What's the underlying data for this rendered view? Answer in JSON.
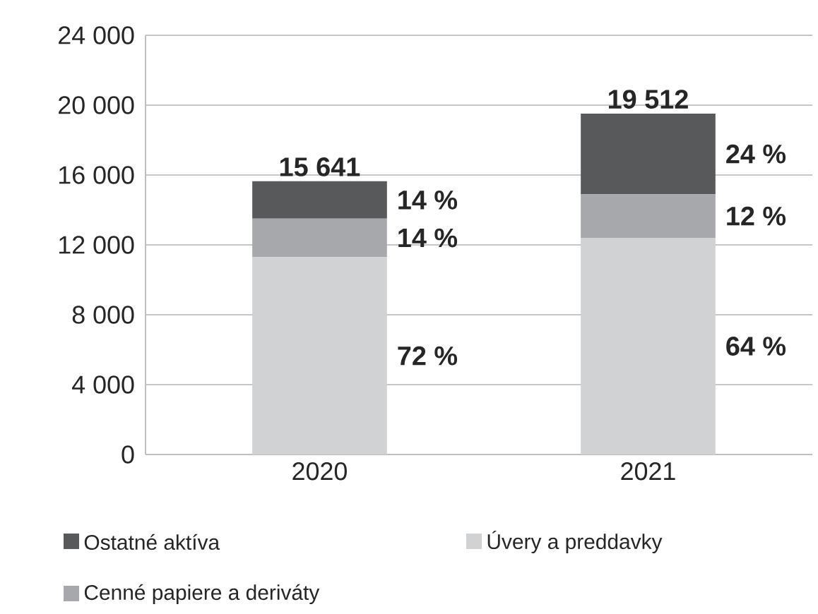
{
  "chart_data": {
    "type": "bar",
    "stacked": true,
    "categories": [
      "2020",
      "2021"
    ],
    "series": [
      {
        "name": "Úvery a preddavky",
        "color": "#d1d2d4",
        "values": [
          11300,
          12400
        ]
      },
      {
        "name": "Cenné papiere a deriváty",
        "color": "#a7a8ab",
        "values": [
          2200,
          2500
        ]
      },
      {
        "name": "Ostatné aktíva",
        "color": "#58595b",
        "values": [
          2141,
          4612
        ]
      }
    ],
    "totals": [
      "15 641",
      "19 512"
    ],
    "annotations": [
      "72 %",
      "14 %",
      "14 %",
      "64 %",
      "12 %",
      "24 %"
    ],
    "ylim": [
      0,
      24000
    ],
    "yticks": [
      {
        "value": 0,
        "label": "0"
      },
      {
        "value": 4000,
        "label": "4 000"
      },
      {
        "value": 8000,
        "label": "8 000"
      },
      {
        "value": 12000,
        "label": "12 000"
      },
      {
        "value": 16000,
        "label": "16 000"
      },
      {
        "value": 20000,
        "label": "20 000"
      },
      {
        "value": 24000,
        "label": "24 000"
      }
    ],
    "grid": "y",
    "legend": "bottom"
  }
}
